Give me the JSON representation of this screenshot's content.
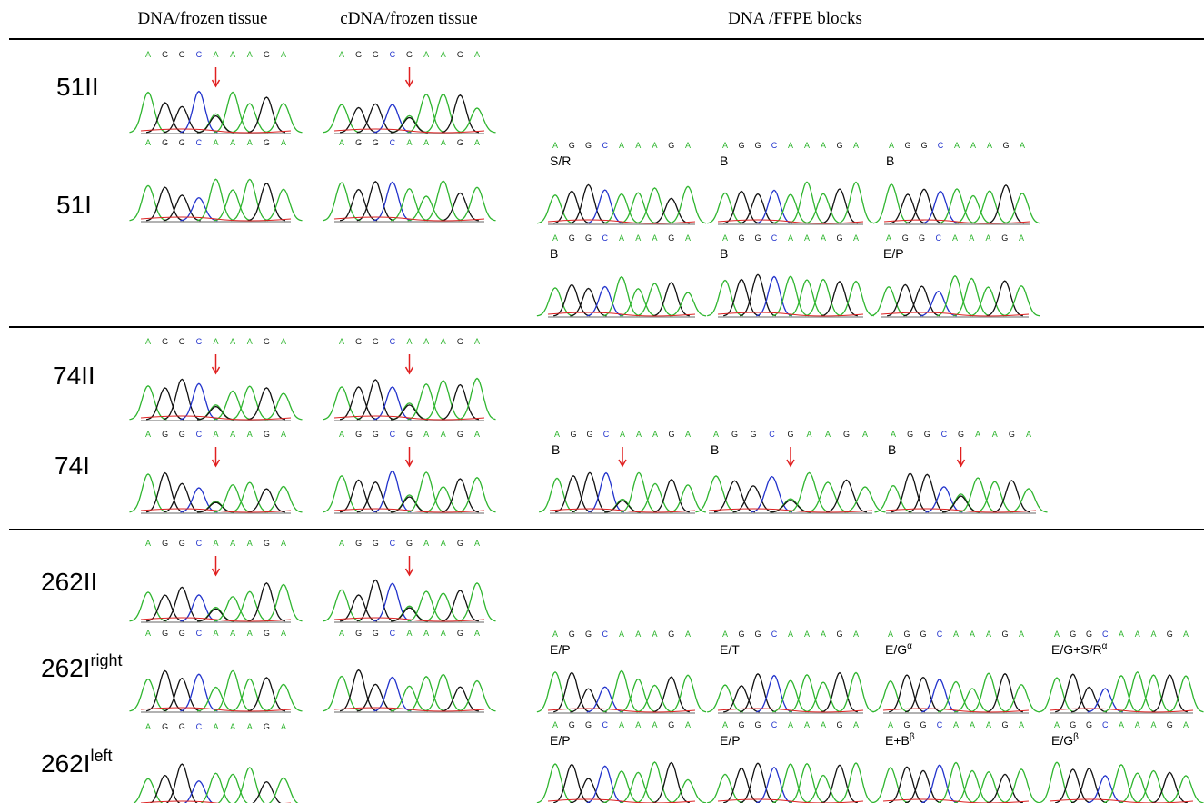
{
  "headers": [
    "DNA/frozen tissue",
    "cDNA/frozen tissue",
    "DNA /FFPE blocks"
  ],
  "rows": [
    {
      "label": "51II"
    },
    {
      "label": "51I"
    },
    {
      "label": "74II"
    },
    {
      "label": "74I"
    },
    {
      "label": "262II"
    },
    {
      "label": "262I",
      "sup": "right"
    },
    {
      "label": "262I",
      "sup": "left"
    }
  ],
  "panels": [
    {
      "sequence": [
        "A",
        "G",
        "G",
        "C",
        "A",
        "A",
        "A",
        "G",
        "A"
      ]
    },
    {
      "sequence": [
        "A",
        "G",
        "G",
        "C",
        "A",
        "A",
        "A",
        "G",
        "A"
      ]
    },
    {
      "sequence": [
        "A",
        "G",
        "G",
        "C",
        "A",
        "A",
        "A",
        "G",
        "A"
      ]
    },
    {
      "sequence": [
        "A",
        "G",
        "G",
        "C",
        "A",
        "A",
        "A",
        "G",
        "A"
      ]
    },
    {
      "sequence": [
        "A",
        "G",
        "G",
        "C",
        "A",
        "A",
        "A",
        "G",
        "A"
      ]
    },
    {
      "sequence": [
        "A",
        "G",
        "G",
        "C",
        "A",
        "A",
        "A",
        "G",
        "A"
      ]
    },
    {
      "sequence": [
        "A",
        "G",
        "G",
        "C",
        "A",
        "A",
        "A",
        "G",
        "A"
      ]
    },
    {
      "sequence": [
        "A",
        "G",
        "G",
        "C",
        "G",
        "A",
        "A",
        "G",
        "A"
      ]
    },
    {
      "sequence": [
        "A",
        "G",
        "G",
        "C",
        "A",
        "A",
        "A",
        "G",
        "A"
      ]
    },
    {
      "sequence": [
        "A",
        "G",
        "G",
        "C",
        "A",
        "A",
        "A",
        "G",
        "A"
      ]
    },
    {
      "sequence": [
        "A",
        "G",
        "G",
        "C",
        "G",
        "A",
        "A",
        "G",
        "A"
      ]
    },
    {
      "sequence": [
        "A",
        "G",
        "G",
        "C",
        "G",
        "A",
        "A",
        "G",
        "A"
      ]
    },
    {
      "sequence": [
        "A",
        "G",
        "G",
        "C",
        "A",
        "A",
        "A",
        "G",
        "A"
      ]
    },
    {
      "sequence": [
        "A",
        "G",
        "G",
        "C",
        "A",
        "A",
        "A",
        "G",
        "A"
      ],
      "block": "S/R"
    },
    {
      "sequence": [
        "A",
        "G",
        "G",
        "C",
        "A",
        "A",
        "A",
        "G",
        "A"
      ],
      "block": "B"
    },
    {
      "sequence": [
        "A",
        "G",
        "G",
        "C",
        "A",
        "A",
        "A",
        "G",
        "A"
      ],
      "block": "B"
    },
    {
      "sequence": [
        "A",
        "G",
        "G",
        "C",
        "A",
        "A",
        "A",
        "G",
        "A"
      ],
      "block": "B"
    },
    {
      "sequence": [
        "A",
        "G",
        "G",
        "C",
        "A",
        "A",
        "A",
        "G",
        "A"
      ],
      "block": "B"
    },
    {
      "sequence": [
        "A",
        "G",
        "G",
        "C",
        "A",
        "A",
        "A",
        "G",
        "A"
      ],
      "block": "E/P"
    },
    {
      "sequence": [
        "A",
        "G",
        "G",
        "C",
        "A",
        "A",
        "A",
        "G",
        "A"
      ],
      "block": "B"
    },
    {
      "sequence": [
        "A",
        "G",
        "G",
        "C",
        "G",
        "A",
        "A",
        "G",
        "A"
      ],
      "block": "B"
    },
    {
      "sequence": [
        "A",
        "G",
        "G",
        "C",
        "G",
        "A",
        "A",
        "G",
        "A"
      ],
      "block": "B"
    },
    {
      "sequence": [
        "A",
        "G",
        "G",
        "C",
        "A",
        "A",
        "A",
        "G",
        "A"
      ],
      "block": "E/P"
    },
    {
      "sequence": [
        "A",
        "G",
        "G",
        "C",
        "A",
        "A",
        "A",
        "G",
        "A"
      ],
      "block": "E/T"
    },
    {
      "sequence": [
        "A",
        "G",
        "G",
        "C",
        "A",
        "A",
        "A",
        "G",
        "A"
      ],
      "block": "E/G",
      "block_sup": "α"
    },
    {
      "sequence": [
        "A",
        "G",
        "G",
        "C",
        "A",
        "A",
        "A",
        "G",
        "A"
      ],
      "block": "E/G+S/R",
      "block_sup": "α"
    },
    {
      "sequence": [
        "A",
        "G",
        "G",
        "C",
        "A",
        "A",
        "A",
        "G",
        "A"
      ],
      "block": "E/P"
    },
    {
      "sequence": [
        "A",
        "G",
        "G",
        "C",
        "A",
        "A",
        "A",
        "G",
        "A"
      ],
      "block": "E/P"
    },
    {
      "sequence": [
        "A",
        "G",
        "G",
        "C",
        "A",
        "A",
        "A",
        "G",
        "A"
      ],
      "block": "E+B",
      "block_sup": "β"
    },
    {
      "sequence": [
        "A",
        "G",
        "G",
        "C",
        "A",
        "A",
        "A",
        "G",
        "A"
      ],
      "block": "E/G",
      "block_sup": "β"
    }
  ]
}
